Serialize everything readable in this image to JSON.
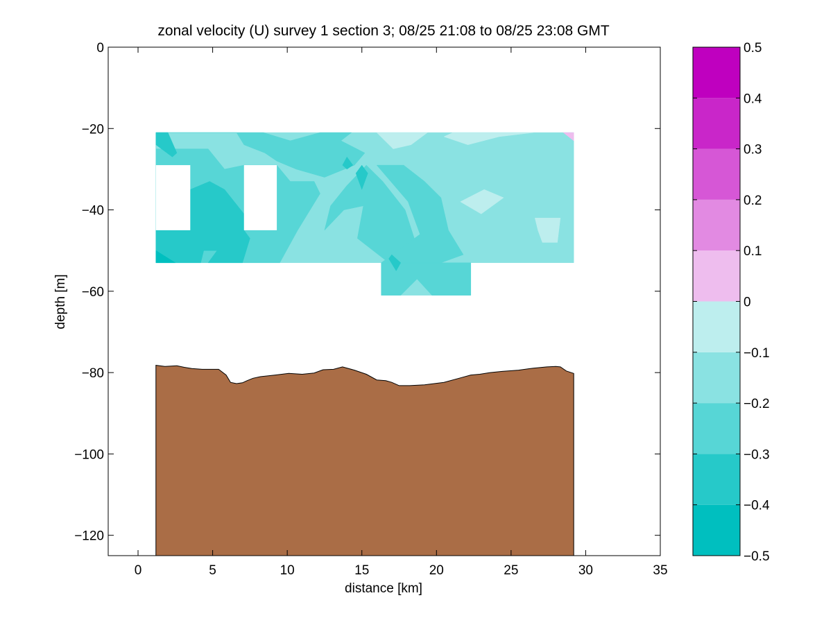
{
  "chart_data": {
    "type": "heatmap",
    "title": "zonal velocity (U) survey 1 section 3; 08/25 21:08 to 08/25 23:08 GMT",
    "xlabel": "distance [km]",
    "ylabel": "depth [m]",
    "xlim": [
      -2,
      35
    ],
    "ylim": [
      -125,
      0
    ],
    "xticks": [
      0,
      5,
      10,
      15,
      20,
      25,
      30,
      35
    ],
    "xtick_labels": [
      "0",
      "5",
      "10",
      "15",
      "20",
      "25",
      "30",
      "35"
    ],
    "yticks": [
      0,
      -20,
      -40,
      -60,
      -80,
      -100,
      -120
    ],
    "ytick_labels": [
      "0",
      "−20",
      "−40",
      "−60",
      "−80",
      "−100",
      "−120"
    ],
    "grid": false,
    "colorbar": {
      "range": [
        -0.5,
        0.5
      ],
      "levels": [
        -0.5,
        -0.4,
        -0.3,
        -0.2,
        -0.1,
        0,
        0.1,
        0.2,
        0.3,
        0.4,
        0.5
      ],
      "tick_labels": [
        "−0.5",
        "−0.4",
        "−0.3",
        "−0.2",
        "−0.1",
        "0",
        "0.1",
        "0.2",
        "0.3",
        "0.4",
        "0.5"
      ],
      "colors": [
        "#00bfbf",
        "#26c9c9",
        "#57d6d6",
        "#8ae2e2",
        "#bdeeee",
        "#eebdee",
        "#e28ae2",
        "#d657d6",
        "#c926c9",
        "#bf00bf"
      ]
    },
    "data_region": {
      "main": {
        "x": [
          1.2,
          29.2
        ],
        "depth": [
          -21,
          -53
        ]
      },
      "lower_extension": {
        "x": [
          16.3,
          22.3
        ],
        "depth": [
          -53,
          -61
        ]
      },
      "gaps": [
        {
          "x": [
            1.2,
            3.5
          ],
          "depth": [
            -29,
            -45
          ]
        },
        {
          "x": [
            7.1,
            9.3
          ],
          "depth": [
            -29,
            -45
          ]
        }
      ]
    },
    "contour_patches": [
      {
        "level": -0.2,
        "points": [
          [
            1.2,
            -21
          ],
          [
            29.2,
            -21
          ],
          [
            29.2,
            -53
          ],
          [
            1.2,
            -53
          ]
        ]
      },
      {
        "level": -0.2,
        "points": [
          [
            16.3,
            -53
          ],
          [
            22.3,
            -53
          ],
          [
            22.3,
            -61
          ],
          [
            16.3,
            -61
          ]
        ]
      },
      {
        "level": -0.3,
        "points": [
          [
            1.2,
            -21
          ],
          [
            6.6,
            -21
          ],
          [
            7.1,
            -24
          ],
          [
            8.5,
            -26
          ],
          [
            9.3,
            -28
          ],
          [
            10.6,
            -30
          ],
          [
            12.5,
            -32
          ],
          [
            14.5,
            -29
          ],
          [
            15.2,
            -26
          ],
          [
            13.6,
            -23
          ],
          [
            14.3,
            -21
          ],
          [
            12.2,
            -21
          ],
          [
            10.2,
            -23
          ],
          [
            8.4,
            -21
          ],
          [
            1.2,
            -21
          ],
          [
            1.2,
            -53
          ],
          [
            9.5,
            -53
          ],
          [
            10.7,
            -45
          ],
          [
            12.2,
            -36
          ],
          [
            11.8,
            -33
          ],
          [
            10.2,
            -33
          ],
          [
            9.3,
            -29
          ],
          [
            7.1,
            -29
          ],
          [
            5.8,
            -30
          ],
          [
            4.7,
            -25
          ],
          [
            1.2,
            -25
          ]
        ]
      },
      {
        "level": -0.3,
        "points": [
          [
            12.5,
            -45
          ],
          [
            13.8,
            -40
          ],
          [
            15.1,
            -39
          ],
          [
            14.7,
            -47
          ],
          [
            16.8,
            -53
          ],
          [
            19.7,
            -53
          ],
          [
            18.6,
            -48
          ],
          [
            17.9,
            -40
          ],
          [
            16.4,
            -33
          ],
          [
            15.3,
            -29
          ],
          [
            14.0,
            -34
          ],
          [
            12.9,
            -39
          ]
        ]
      },
      {
        "level": -0.3,
        "points": [
          [
            16.3,
            -53
          ],
          [
            20.3,
            -53
          ],
          [
            21.8,
            -51
          ],
          [
            20.8,
            -45
          ],
          [
            20.3,
            -37
          ],
          [
            19.2,
            -33
          ],
          [
            17.8,
            -29
          ],
          [
            16.0,
            -29
          ],
          [
            18.1,
            -38
          ],
          [
            18.9,
            -46
          ]
        ]
      },
      {
        "level": -0.3,
        "points": [
          [
            16.3,
            -53
          ],
          [
            22.3,
            -53
          ],
          [
            22.3,
            -61
          ],
          [
            19.7,
            -61
          ],
          [
            18.7,
            -57
          ],
          [
            17.6,
            -61
          ],
          [
            16.3,
            -61
          ]
        ]
      },
      {
        "level": -0.4,
        "points": [
          [
            1.2,
            -21
          ],
          [
            2.0,
            -21
          ],
          [
            2.6,
            -26
          ],
          [
            2.3,
            -27
          ],
          [
            1.2,
            -24
          ]
        ]
      },
      {
        "level": -0.4,
        "points": [
          [
            1.2,
            -45
          ],
          [
            3.5,
            -45
          ],
          [
            3.5,
            -35
          ],
          [
            4.8,
            -33
          ],
          [
            5.8,
            -35
          ],
          [
            7.1,
            -41
          ],
          [
            7.1,
            -45
          ],
          [
            7.5,
            -47
          ],
          [
            7.0,
            -53
          ],
          [
            4.7,
            -53
          ],
          [
            5.3,
            -50
          ],
          [
            4.4,
            -50
          ],
          [
            4.2,
            -53
          ],
          [
            1.2,
            -53
          ]
        ]
      },
      {
        "level": -0.4,
        "points": [
          [
            14.0,
            -27
          ],
          [
            14.4,
            -29
          ],
          [
            14.0,
            -30
          ],
          [
            13.7,
            -29
          ]
        ]
      },
      {
        "level": -0.4,
        "points": [
          [
            15.0,
            -29
          ],
          [
            15.4,
            -31
          ],
          [
            15.0,
            -35
          ],
          [
            14.6,
            -31
          ]
        ]
      },
      {
        "level": -0.4,
        "points": [
          [
            17.0,
            -51
          ],
          [
            17.6,
            -53
          ],
          [
            17.3,
            -55
          ],
          [
            16.8,
            -52
          ]
        ]
      },
      {
        "level": -0.5,
        "points": [
          [
            1.2,
            -50
          ],
          [
            2.5,
            -53
          ],
          [
            1.2,
            -53
          ]
        ]
      },
      {
        "level": -0.1,
        "points": [
          [
            19.4,
            -21
          ],
          [
            18.3,
            -24
          ],
          [
            17.1,
            -25
          ],
          [
            16.0,
            -21
          ]
        ]
      },
      {
        "level": -0.1,
        "points": [
          [
            21.1,
            -21
          ],
          [
            26.5,
            -21
          ],
          [
            24.2,
            -22
          ],
          [
            22.1,
            -24
          ],
          [
            20.5,
            -22
          ]
        ]
      },
      {
        "level": -0.1,
        "points": [
          [
            21.6,
            -38
          ],
          [
            23.2,
            -35
          ],
          [
            24.5,
            -37
          ],
          [
            23.0,
            -41
          ]
        ]
      },
      {
        "level": -0.1,
        "points": [
          [
            26.6,
            -42
          ],
          [
            28.3,
            -42
          ],
          [
            28.1,
            -48
          ],
          [
            27.1,
            -48
          ],
          [
            26.8,
            -45
          ]
        ]
      },
      {
        "level": 0.0,
        "points": [
          [
            28.5,
            -21
          ],
          [
            29.2,
            -21
          ],
          [
            29.2,
            -23
          ]
        ]
      }
    ],
    "bottom": {
      "fill": "#aa6d46",
      "x": [
        1.2,
        1.8,
        2.6,
        3.1,
        3.6,
        4.3,
        5.4,
        5.9,
        6.2,
        6.6,
        7.0,
        7.3,
        7.7,
        8.2,
        9.2,
        10.1,
        11.0,
        11.8,
        12.4,
        13.1,
        13.7,
        14.5,
        15.3,
        16.0,
        16.6,
        17.0,
        17.5,
        18.2,
        19.2,
        20.5,
        21.7,
        22.3,
        22.9,
        23.6,
        24.4,
        25.5,
        26.5,
        27.4,
        28.0,
        28.3,
        28.7,
        29.2
      ],
      "depth": [
        -78.2,
        -78.5,
        -78.3,
        -78.7,
        -79.0,
        -79.2,
        -79.2,
        -80.6,
        -82.4,
        -82.7,
        -82.5,
        -82.0,
        -81.4,
        -81.0,
        -80.6,
        -80.2,
        -80.4,
        -80.1,
        -79.3,
        -79.2,
        -78.6,
        -79.4,
        -80.4,
        -81.8,
        -82.0,
        -82.4,
        -83.2,
        -83.2,
        -83.0,
        -82.4,
        -81.2,
        -80.6,
        -80.4,
        -80.0,
        -79.7,
        -79.4,
        -78.9,
        -78.6,
        -78.5,
        -78.6,
        -79.6,
        -80.2
      ]
    }
  }
}
